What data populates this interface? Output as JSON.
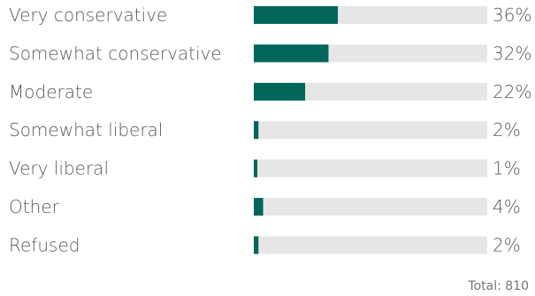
{
  "chart_data": {
    "type": "bar",
    "orientation": "horizontal",
    "categories": [
      "Very conservative",
      "Somewhat conservative",
      "Moderate",
      "Somewhat liberal",
      "Very liberal",
      "Other",
      "Refused"
    ],
    "values": [
      36,
      32,
      22,
      2,
      1,
      4,
      2
    ],
    "value_labels": [
      "36%",
      "32%",
      "22%",
      "2%",
      "1%",
      "4%",
      "2%"
    ],
    "xlim": [
      0,
      100
    ],
    "grid": false,
    "legend": "none",
    "footnote": "Total: 810",
    "colors": {
      "bar": "#00665a",
      "track": "#e6e6e6",
      "text": "#595959"
    }
  }
}
